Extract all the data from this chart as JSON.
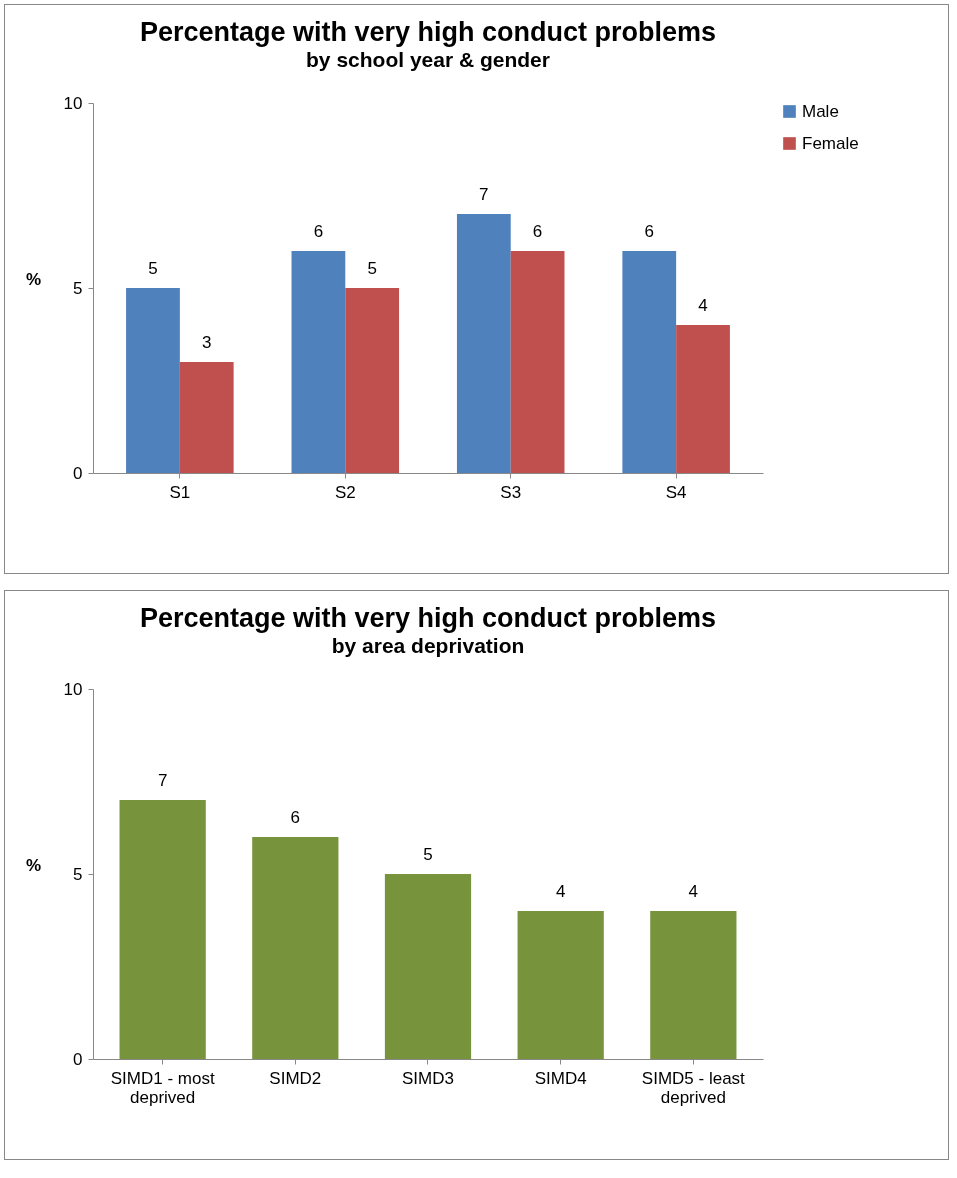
{
  "chart_data": [
    {
      "type": "bar",
      "title": "Percentage with very high conduct problems",
      "subtitle": "by school year & gender",
      "ylabel": "%",
      "categories": [
        "S1",
        "S2",
        "S3",
        "S4"
      ],
      "series": [
        {
          "name": "Male",
          "color": "#4f81bd",
          "values": [
            5,
            6,
            7,
            6
          ]
        },
        {
          "name": "Female",
          "color": "#c0504d",
          "values": [
            3,
            5,
            6,
            4
          ]
        }
      ],
      "ylim": [
        0,
        10
      ],
      "yticks": [
        0,
        5,
        10
      ],
      "grid": false,
      "legend": "right",
      "data_labels": true
    },
    {
      "type": "bar",
      "title": "Percentage with very high conduct problems",
      "subtitle": "by area deprivation",
      "ylabel": "%",
      "categories": [
        "SIMD1 - most deprived",
        "SIMD2",
        "SIMD3",
        "SIMD4",
        "SIMD5 - least deprived"
      ],
      "series": [
        {
          "color": "#77933c",
          "values": [
            7,
            6,
            5,
            4,
            4
          ]
        }
      ],
      "ylim": [
        0,
        10
      ],
      "yticks": [
        0,
        5,
        10
      ],
      "grid": false,
      "legend": false,
      "data_labels": true
    }
  ]
}
